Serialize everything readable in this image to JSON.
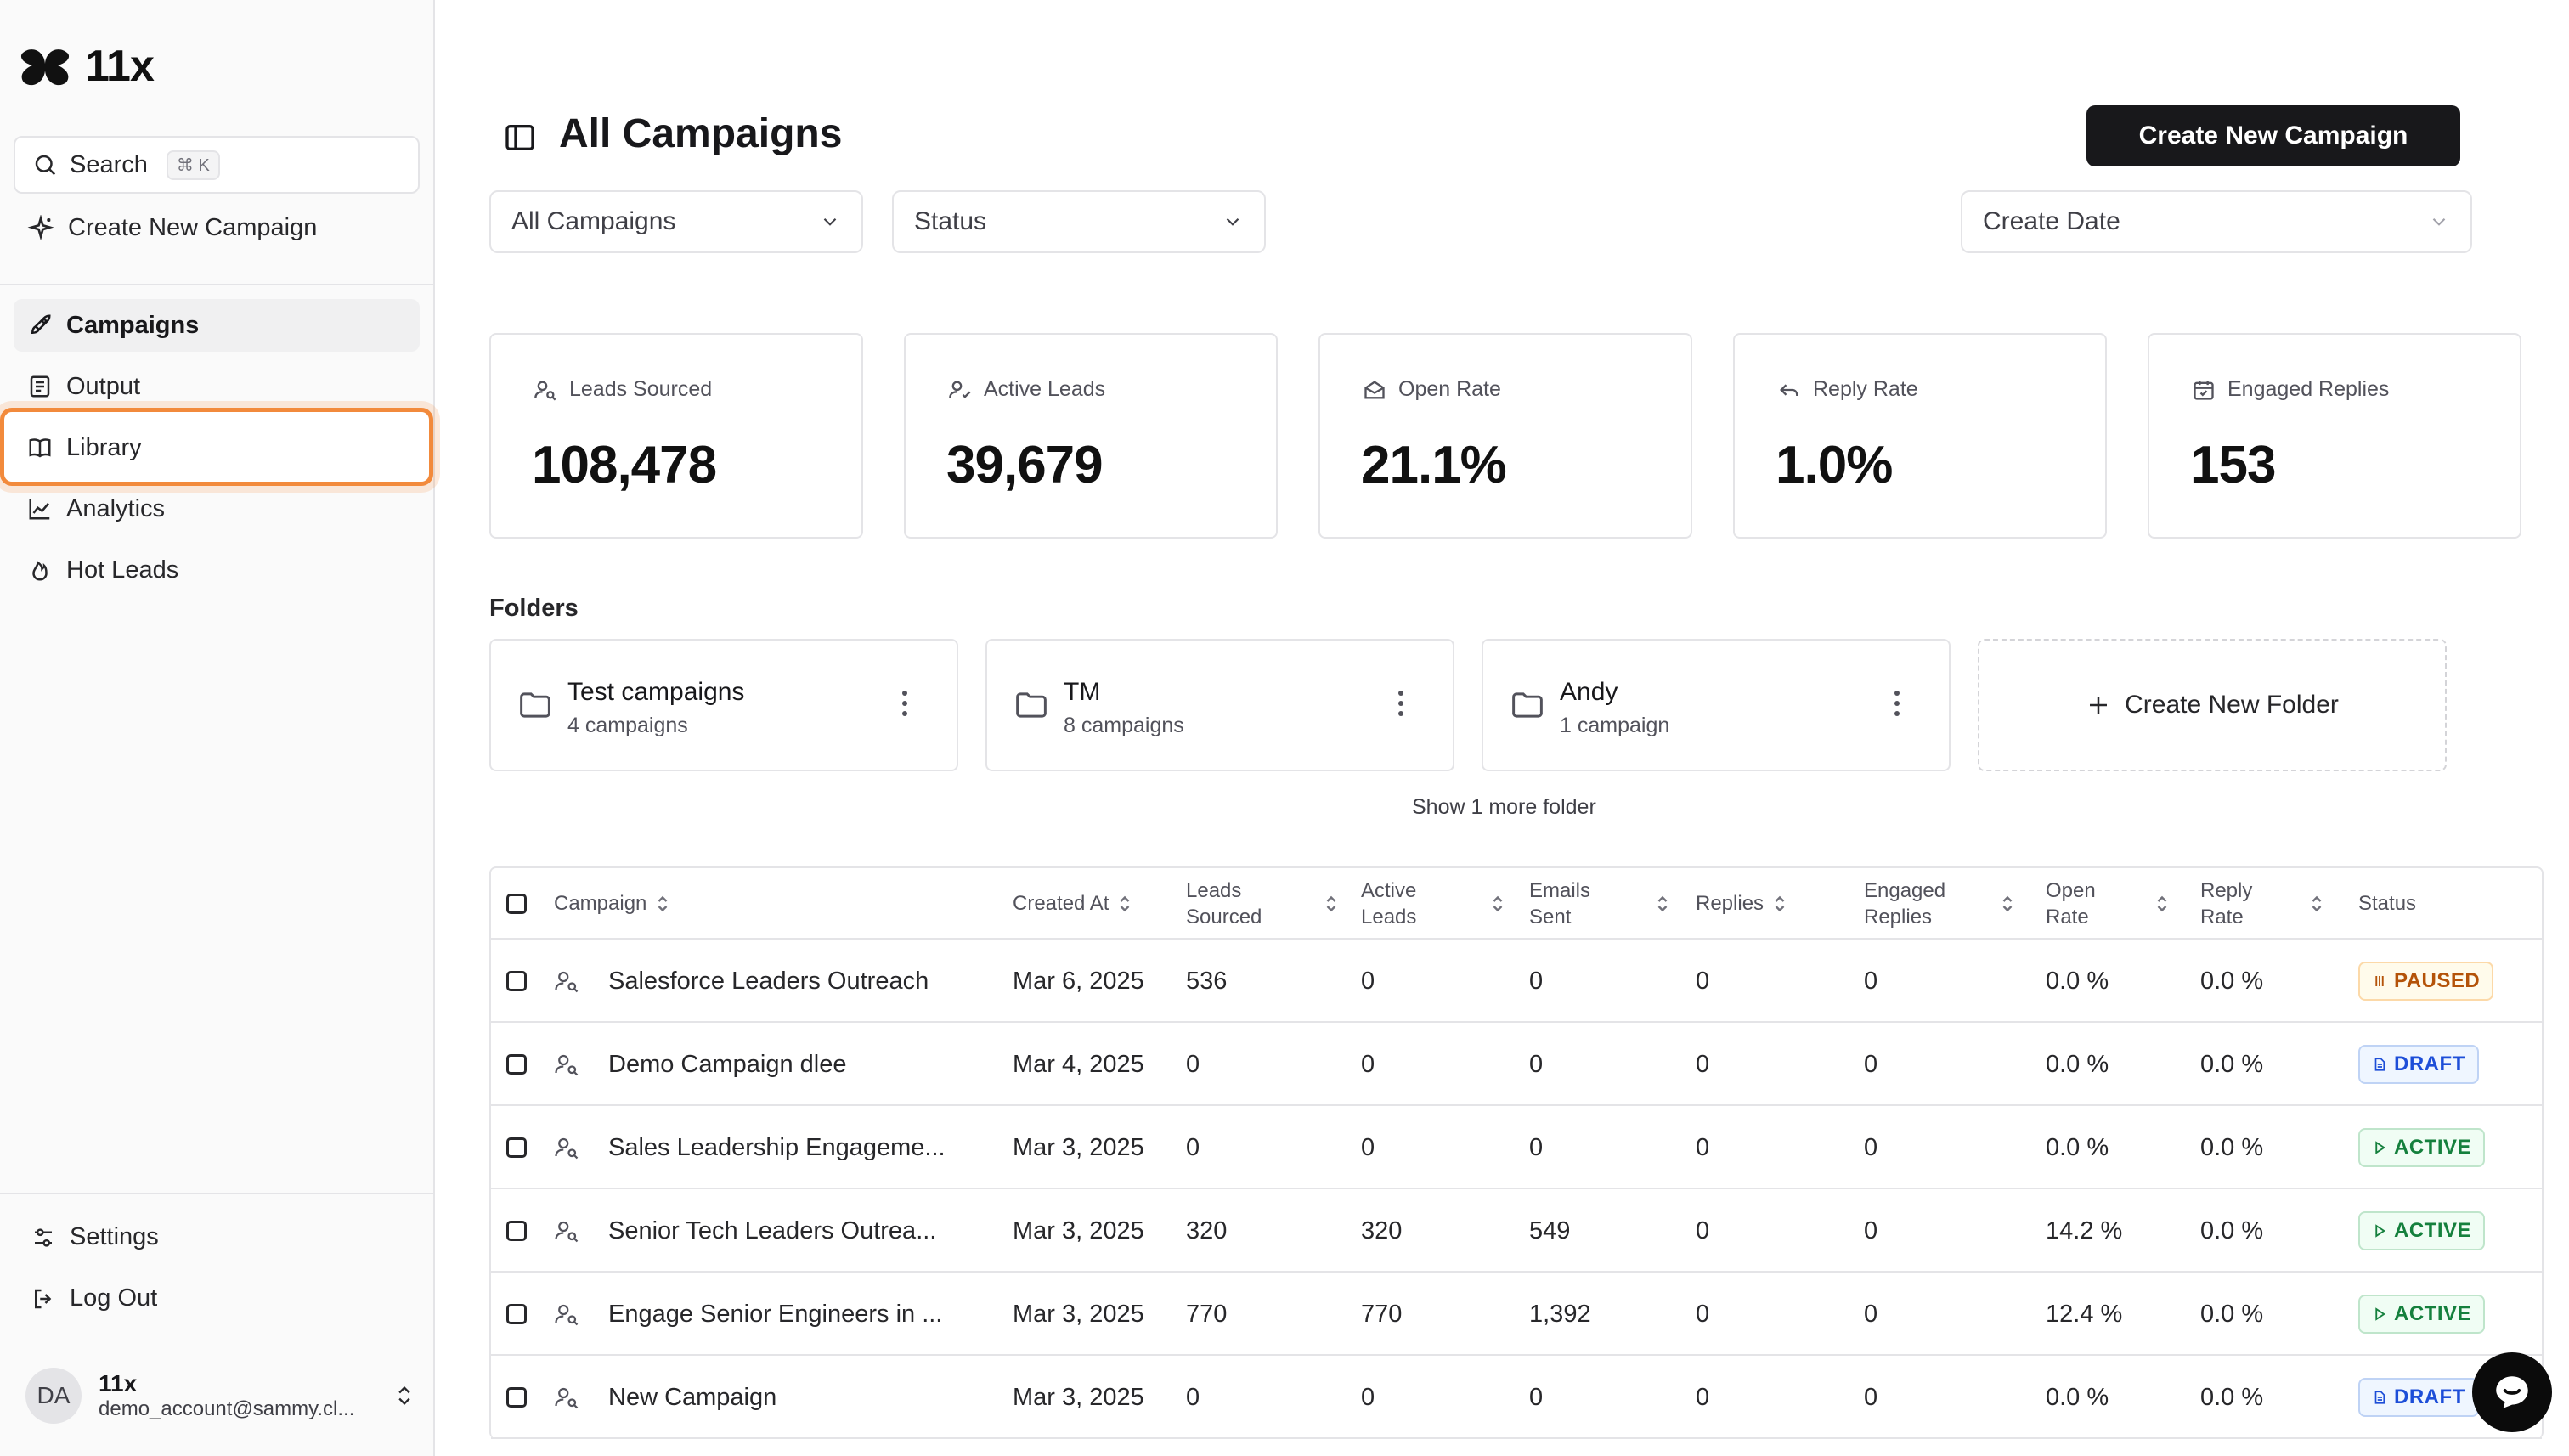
{
  "app": {
    "logo_text": "11x"
  },
  "sidebar": {
    "search_label": "Search",
    "search_shortcut": "⌘ K",
    "create_label": "Create New Campaign",
    "nav": [
      {
        "label": "Campaigns",
        "icon": "rocket-icon",
        "active": true
      },
      {
        "label": "Output",
        "icon": "document-icon",
        "active": false
      },
      {
        "label": "Library",
        "icon": "book-icon",
        "active": false,
        "highlighted": true
      },
      {
        "label": "Analytics",
        "icon": "chart-icon",
        "active": false
      },
      {
        "label": "Hot Leads",
        "icon": "flame-icon",
        "active": false
      }
    ],
    "settings_label": "Settings",
    "logout_label": "Log Out",
    "user": {
      "initials": "DA",
      "name": "11x",
      "email": "demo_account@sammy.cl..."
    }
  },
  "header": {
    "title": "All Campaigns",
    "create_button": "Create New Campaign"
  },
  "filters": {
    "campaign_filter": "All Campaigns",
    "status_filter": "Status",
    "date_filter": "Create Date"
  },
  "stats": [
    {
      "label": "Leads Sourced",
      "value": "108,478",
      "icon": "user-search-icon"
    },
    {
      "label": "Active Leads",
      "value": "39,679",
      "icon": "user-check-icon"
    },
    {
      "label": "Open Rate",
      "value": "21.1%",
      "icon": "mail-open-icon"
    },
    {
      "label": "Reply Rate",
      "value": "1.0%",
      "icon": "reply-icon"
    },
    {
      "label": "Engaged Replies",
      "value": "153",
      "icon": "calendar-icon"
    }
  ],
  "folders": {
    "title": "Folders",
    "items": [
      {
        "name": "Test campaigns",
        "count": "4 campaigns"
      },
      {
        "name": "TM",
        "count": "8 campaigns"
      },
      {
        "name": "Andy",
        "count": "1 campaign"
      }
    ],
    "create_label": "Create New Folder",
    "show_more": "Show 1 more folder"
  },
  "table": {
    "headers": {
      "campaign": "Campaign",
      "created_at": "Created At",
      "leads_sourced_1": "Leads",
      "leads_sourced_2": "Sourced",
      "active_leads_1": "Active",
      "active_leads_2": "Leads",
      "emails_sent_1": "Emails",
      "emails_sent_2": "Sent",
      "replies": "Replies",
      "engaged_replies_1": "Engaged",
      "engaged_replies_2": "Replies",
      "open_rate_1": "Open",
      "open_rate_2": "Rate",
      "reply_rate_1": "Reply",
      "reply_rate_2": "Rate",
      "status": "Status"
    },
    "rows": [
      {
        "campaign": "Salesforce Leaders Outreach",
        "created_at": "Mar 6, 2025",
        "leads_sourced": "536",
        "active_leads": "0",
        "emails_sent": "0",
        "replies": "0",
        "engaged_replies": "0",
        "open_rate": "0.0 %",
        "reply_rate": "0.0 %",
        "status": "PAUSED"
      },
      {
        "campaign": "Demo Campaign dlee",
        "created_at": "Mar 4, 2025",
        "leads_sourced": "0",
        "active_leads": "0",
        "emails_sent": "0",
        "replies": "0",
        "engaged_replies": "0",
        "open_rate": "0.0 %",
        "reply_rate": "0.0 %",
        "status": "DRAFT"
      },
      {
        "campaign": "Sales Leadership Engageme...",
        "created_at": "Mar 3, 2025",
        "leads_sourced": "0",
        "active_leads": "0",
        "emails_sent": "0",
        "replies": "0",
        "engaged_replies": "0",
        "open_rate": "0.0 %",
        "reply_rate": "0.0 %",
        "status": "ACTIVE"
      },
      {
        "campaign": "Senior Tech Leaders Outrea...",
        "created_at": "Mar 3, 2025",
        "leads_sourced": "320",
        "active_leads": "320",
        "emails_sent": "549",
        "replies": "0",
        "engaged_replies": "0",
        "open_rate": "14.2 %",
        "reply_rate": "0.0 %",
        "status": "ACTIVE"
      },
      {
        "campaign": "Engage Senior Engineers in ...",
        "created_at": "Mar 3, 2025",
        "leads_sourced": "770",
        "active_leads": "770",
        "emails_sent": "1,392",
        "replies": "0",
        "engaged_replies": "0",
        "open_rate": "12.4 %",
        "reply_rate": "0.0 %",
        "status": "ACTIVE"
      },
      {
        "campaign": "New Campaign",
        "created_at": "Mar 3, 2025",
        "leads_sourced": "0",
        "active_leads": "0",
        "emails_sent": "0",
        "replies": "0",
        "engaged_replies": "0",
        "open_rate": "0.0 %",
        "reply_rate": "0.0 %",
        "status": "DRAFT"
      }
    ]
  },
  "colors": {
    "paused_fg": "#b45309",
    "paused_bg": "#fffbeb",
    "paused_border": "#fcd9a8",
    "draft_fg": "#1d4ed8",
    "draft_bg": "#eff6ff",
    "draft_border": "#bfd3f5",
    "active_fg": "#15803d",
    "active_bg": "#f0fdf4",
    "active_border": "#bfe5cb",
    "highlight": "#f28a3c"
  }
}
